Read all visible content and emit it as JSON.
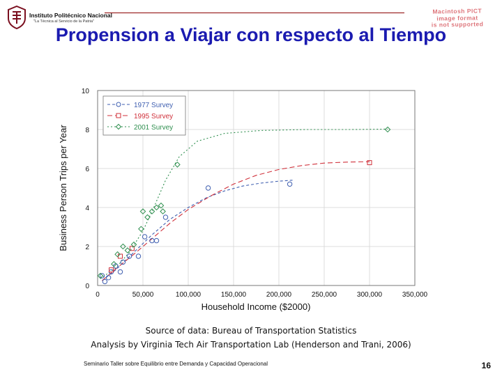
{
  "header": {
    "institution": "Instituto Politécnico Nacional",
    "motto": "\"La Técnica al Servicio de la Patria\"",
    "notice": "Macintosh PICT\nimage format\nis not supported"
  },
  "slide": {
    "title": "Propension a Viajar con respecto al Tiempo",
    "source_line1": "Source of data: Bureau of Transportation Statistics",
    "source_line2": "Analysis by Virginia Tech Air Transportation Lab (Henderson and Trani, 2006)",
    "footer": "Seminario Taller sobre Equilibrio entre Demanda y Capacidad Operacional",
    "page_number": "16"
  },
  "colors": {
    "title": "#1b1bb0",
    "series_1977": "#3f5fb0",
    "series_1995": "#d0303a",
    "series_2001": "#2f8f4f",
    "frame": "#777777",
    "grid": "#dcdcdc"
  },
  "chart_data": {
    "type": "scatter",
    "xlabel": "Household Income ($2000)",
    "ylabel": "Business Person Trips per Year",
    "xlim": [
      0,
      350000
    ],
    "ylim": [
      0,
      10
    ],
    "xticks": [
      "0",
      "50,000",
      "100,000",
      "150,000",
      "200,000",
      "250,000",
      "300,000",
      "350,000"
    ],
    "yticks": [
      "0",
      "2",
      "4",
      "6",
      "8",
      "10"
    ],
    "grid": true,
    "legend": "top-left",
    "series": [
      {
        "name": "1977 Survey",
        "marker": "circle",
        "color_key": "series_1977",
        "points": [
          [
            5000,
            0.5
          ],
          [
            8000,
            0.2
          ],
          [
            12000,
            0.4
          ],
          [
            15000,
            0.7
          ],
          [
            20000,
            1.0
          ],
          [
            25000,
            0.7
          ],
          [
            28000,
            1.2
          ],
          [
            35000,
            1.5
          ],
          [
            45000,
            1.5
          ],
          [
            52000,
            2.5
          ],
          [
            60000,
            2.3
          ],
          [
            65000,
            2.3
          ],
          [
            75000,
            3.5
          ],
          [
            122000,
            5.0
          ],
          [
            212000,
            5.2
          ]
        ],
        "curve": [
          [
            5000,
            0.25
          ],
          [
            20000,
            0.8
          ],
          [
            40000,
            1.7
          ],
          [
            60000,
            2.6
          ],
          [
            80000,
            3.4
          ],
          [
            100000,
            4.0
          ],
          [
            120000,
            4.5
          ],
          [
            140000,
            4.85
          ],
          [
            160000,
            5.1
          ],
          [
            180000,
            5.25
          ],
          [
            200000,
            5.35
          ],
          [
            215000,
            5.4
          ]
        ]
      },
      {
        "name": "1995 Survey",
        "marker": "square",
        "color_key": "series_1995",
        "points": [
          [
            15000,
            0.8
          ],
          [
            25000,
            1.5
          ],
          [
            38000,
            1.9
          ],
          [
            300000,
            6.3
          ]
        ],
        "curve": [
          [
            5000,
            0.25
          ],
          [
            20000,
            0.85
          ],
          [
            40000,
            1.6
          ],
          [
            60000,
            2.4
          ],
          [
            80000,
            3.2
          ],
          [
            100000,
            3.9
          ],
          [
            125000,
            4.6
          ],
          [
            150000,
            5.2
          ],
          [
            175000,
            5.65
          ],
          [
            200000,
            5.95
          ],
          [
            225000,
            6.15
          ],
          [
            250000,
            6.28
          ],
          [
            275000,
            6.33
          ],
          [
            300000,
            6.35
          ]
        ]
      },
      {
        "name": "2001 Survey",
        "marker": "diamond",
        "color_key": "series_2001",
        "points": [
          [
            3000,
            0.5
          ],
          [
            18000,
            1.1
          ],
          [
            22000,
            1.6
          ],
          [
            28000,
            2.0
          ],
          [
            33000,
            1.8
          ],
          [
            40000,
            2.1
          ],
          [
            48000,
            2.9
          ],
          [
            50000,
            3.8
          ],
          [
            55000,
            3.5
          ],
          [
            60000,
            3.8
          ],
          [
            65000,
            4.0
          ],
          [
            70000,
            4.1
          ],
          [
            72000,
            3.8
          ],
          [
            88000,
            6.2
          ],
          [
            320000,
            8.0
          ]
        ],
        "curve": [
          [
            3000,
            0.35
          ],
          [
            20000,
            0.9
          ],
          [
            35000,
            1.7
          ],
          [
            50000,
            2.8
          ],
          [
            62000,
            4.0
          ],
          [
            75000,
            5.4
          ],
          [
            90000,
            6.6
          ],
          [
            110000,
            7.4
          ],
          [
            140000,
            7.8
          ],
          [
            180000,
            7.95
          ],
          [
            230000,
            8.0
          ],
          [
            280000,
            8.0
          ],
          [
            320000,
            8.02
          ]
        ]
      }
    ]
  }
}
